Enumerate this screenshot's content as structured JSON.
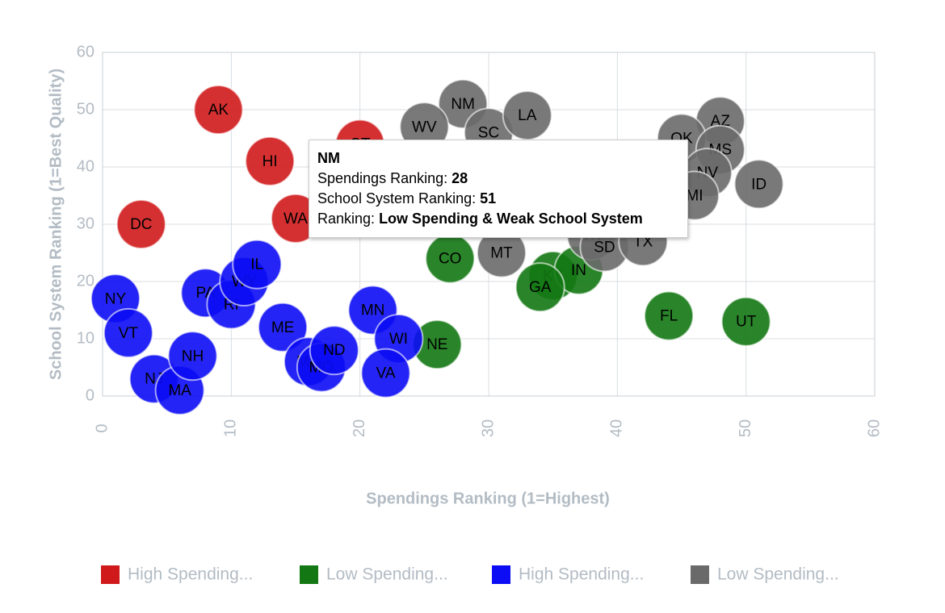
{
  "chart_data": {
    "type": "scatter",
    "x_label": "Spendings Ranking (1=Highest)",
    "y_label": "School System Ranking (1=Best Quality)",
    "xlim": [
      0,
      60
    ],
    "ylim": [
      0,
      60
    ],
    "xticks": [
      0,
      10,
      20,
      30,
      40,
      50,
      60
    ],
    "yticks": [
      0,
      10,
      20,
      30,
      40,
      50,
      60
    ],
    "grid": true,
    "legend": "bottom",
    "series": [
      {
        "name": "High Spending...",
        "color": "#d0191b",
        "labels": [
          "AK",
          "DC",
          "HI",
          "WA",
          "CT"
        ],
        "x": [
          9,
          3,
          13,
          15,
          20
        ],
        "values": [
          50,
          30,
          41,
          31,
          44
        ]
      },
      {
        "name": "Low Spending...",
        "color": "#137813",
        "labels": [
          "CO",
          "NE",
          "FL",
          "UT",
          "KY",
          "IN",
          "GA"
        ],
        "x": [
          27,
          26,
          44,
          50,
          35,
          37,
          34
        ],
        "values": [
          24,
          9,
          14,
          13,
          21,
          22,
          19
        ]
      },
      {
        "name": "High Spending...",
        "color": "#0c0cf5",
        "labels": [
          "NY",
          "VT",
          "NJ",
          "MA",
          "NH",
          "PA",
          "RI",
          "WY",
          "IL",
          "ME",
          "MD",
          "MO",
          "ND",
          "MN",
          "WI",
          "VA"
        ],
        "x": [
          1,
          2,
          4,
          6,
          7,
          8,
          10,
          11,
          12,
          14,
          16,
          17,
          18,
          21,
          23,
          22
        ],
        "values": [
          17,
          11,
          3,
          1,
          7,
          18,
          16,
          20,
          23,
          12,
          6,
          5,
          8,
          15,
          10,
          4
        ]
      },
      {
        "name": "Low Spending...",
        "color": "#6a6a6a",
        "labels": [
          "NM",
          "WV",
          "SC",
          "LA",
          "AZ",
          "OK",
          "MS",
          "NV",
          "ID",
          "MI",
          "MT",
          "TN",
          "SD",
          "TX"
        ],
        "x": [
          28,
          25,
          30,
          33,
          48,
          45,
          48,
          47,
          51,
          46,
          31,
          38,
          39,
          42
        ],
        "values": [
          51,
          47,
          46,
          49,
          48,
          45,
          43,
          39,
          37,
          35,
          25,
          28,
          26,
          27
        ]
      }
    ]
  },
  "tooltip": {
    "title": "NM",
    "lines": [
      {
        "label": "Spendings Ranking:",
        "value": "28"
      },
      {
        "label": "School System Ranking:",
        "value": "51"
      },
      {
        "label": "Ranking:",
        "value": "Low Spending & Weak School System"
      }
    ]
  }
}
